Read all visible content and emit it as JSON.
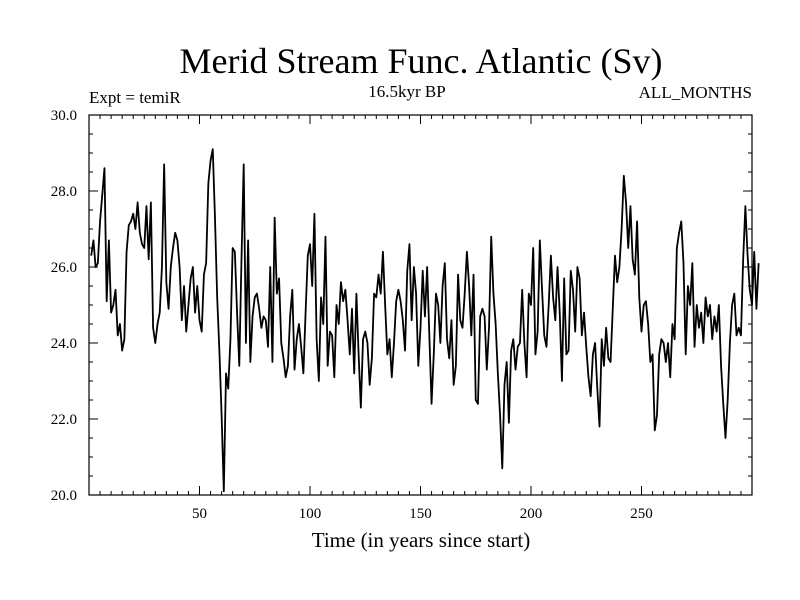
{
  "chart_data": {
    "type": "line",
    "title": "Merid Stream Func. Atlantic (Sv)",
    "annotations": {
      "left": "Expt = temiR",
      "center": "16.5kyr BP",
      "right": "ALL_MONTHS"
    },
    "xlabel": "Time (in years since start)",
    "ylabel": "",
    "xlim": [
      0,
      300
    ],
    "ylim": [
      20,
      30
    ],
    "x_ticks": [
      50,
      100,
      150,
      200,
      250
    ],
    "x_tick_labels": [
      "50",
      "100",
      "150",
      "200",
      "250"
    ],
    "y_ticks": [
      20,
      22,
      24,
      26,
      28,
      30
    ],
    "y_tick_labels": [
      "20.0",
      "22.0",
      "24.0",
      "26.0",
      "28.0",
      "30.0"
    ],
    "grid": false,
    "series": [
      {
        "name": "Merid Stream Func. Atlantic",
        "x_start": 1,
        "x_step": 1,
        "values": [
          26.3,
          26.7,
          26.0,
          26.1,
          27.2,
          27.9,
          28.6,
          25.1,
          26.7,
          24.8,
          25.0,
          25.4,
          24.2,
          24.5,
          23.8,
          24.1,
          26.4,
          27.1,
          27.2,
          27.4,
          27.0,
          27.7,
          26.9,
          26.6,
          26.5,
          27.6,
          26.2,
          27.7,
          24.4,
          24.0,
          24.5,
          24.8,
          26.0,
          28.7,
          25.6,
          24.9,
          26.0,
          26.5,
          26.9,
          26.7,
          26.0,
          24.6,
          25.5,
          24.3,
          25.0,
          25.7,
          26.0,
          24.8,
          25.5,
          24.6,
          24.3,
          25.8,
          26.1,
          28.2,
          28.8,
          29.1,
          27.3,
          25.2,
          23.8,
          22.1,
          20.1,
          23.2,
          22.8,
          24.1,
          26.5,
          26.4,
          24.8,
          23.4,
          26.2,
          28.7,
          24.0,
          26.7,
          23.5,
          24.7,
          25.2,
          25.3,
          24.9,
          24.4,
          24.7,
          24.6,
          23.9,
          26.0,
          23.5,
          27.3,
          25.3,
          25.7,
          24.0,
          23.6,
          23.1,
          23.4,
          24.7,
          25.4,
          23.3,
          24.1,
          24.5,
          23.9,
          23.2,
          24.8,
          26.3,
          26.6,
          25.5,
          27.4,
          24.1,
          23.0,
          25.2,
          24.5,
          26.8,
          23.4,
          24.3,
          24.2,
          23.1,
          25.0,
          24.5,
          25.6,
          25.1,
          25.4,
          24.6,
          23.7,
          24.9,
          23.2,
          25.3,
          23.7,
          22.3,
          24.1,
          24.3,
          24.0,
          22.9,
          23.6,
          25.3,
          25.2,
          25.8,
          25.3,
          26.4,
          25.0,
          23.7,
          24.1,
          23.1,
          24.0,
          25.1,
          25.4,
          25.1,
          24.6,
          23.8,
          25.9,
          26.6,
          24.6,
          26.0,
          25.3,
          23.4,
          24.4,
          25.9,
          24.7,
          26.0,
          24.2,
          22.4,
          23.7,
          25.3,
          25.0,
          24.0,
          25.5,
          26.1,
          24.1,
          23.6,
          24.6,
          22.9,
          23.4,
          25.8,
          24.6,
          24.4,
          25.3,
          26.4,
          25.5,
          24.2,
          25.8,
          22.5,
          22.4,
          24.7,
          24.9,
          24.7,
          23.3,
          24.4,
          26.8,
          25.3,
          24.5,
          23.2,
          22.1,
          20.7,
          22.9,
          23.5,
          21.9,
          23.8,
          24.1,
          23.3,
          23.9,
          24.0,
          25.4,
          24.0,
          23.1,
          25.3,
          25.0,
          26.5,
          23.7,
          24.3,
          26.7,
          25.4,
          24.2,
          23.9,
          25.0,
          26.3,
          25.2,
          24.6,
          26.0,
          24.8,
          23.0,
          25.7,
          23.7,
          23.8,
          25.9,
          25.4,
          24.3,
          26.0,
          25.7,
          24.2,
          24.8,
          23.9,
          23.1,
          22.6,
          23.7,
          24.0,
          22.8,
          21.8,
          24.1,
          23.4,
          24.4,
          23.6,
          23.5,
          24.9,
          26.3,
          25.6,
          26.0,
          27.0,
          28.4,
          27.7,
          26.5,
          27.6,
          26.2,
          25.8,
          27.2,
          25.2,
          24.3,
          25.0,
          25.1,
          24.5,
          23.5,
          23.7,
          21.7,
          22.1,
          23.7,
          24.1,
          24.0,
          23.5,
          24.0,
          23.1,
          24.5,
          24.1,
          26.5,
          26.9,
          27.2,
          26.1,
          23.7,
          25.5,
          25.0,
          26.1,
          23.9,
          25.0,
          24.4,
          24.8,
          24.0,
          25.2,
          24.7,
          25.0,
          24.1,
          24.7,
          24.3,
          25.0,
          23.4,
          22.4,
          21.5,
          22.5,
          24.0,
          25.0,
          25.3,
          24.2,
          24.4,
          24.2,
          26.2,
          27.6,
          26.3,
          25.4,
          25.0,
          26.4,
          24.9,
          26.1
        ]
      }
    ]
  }
}
